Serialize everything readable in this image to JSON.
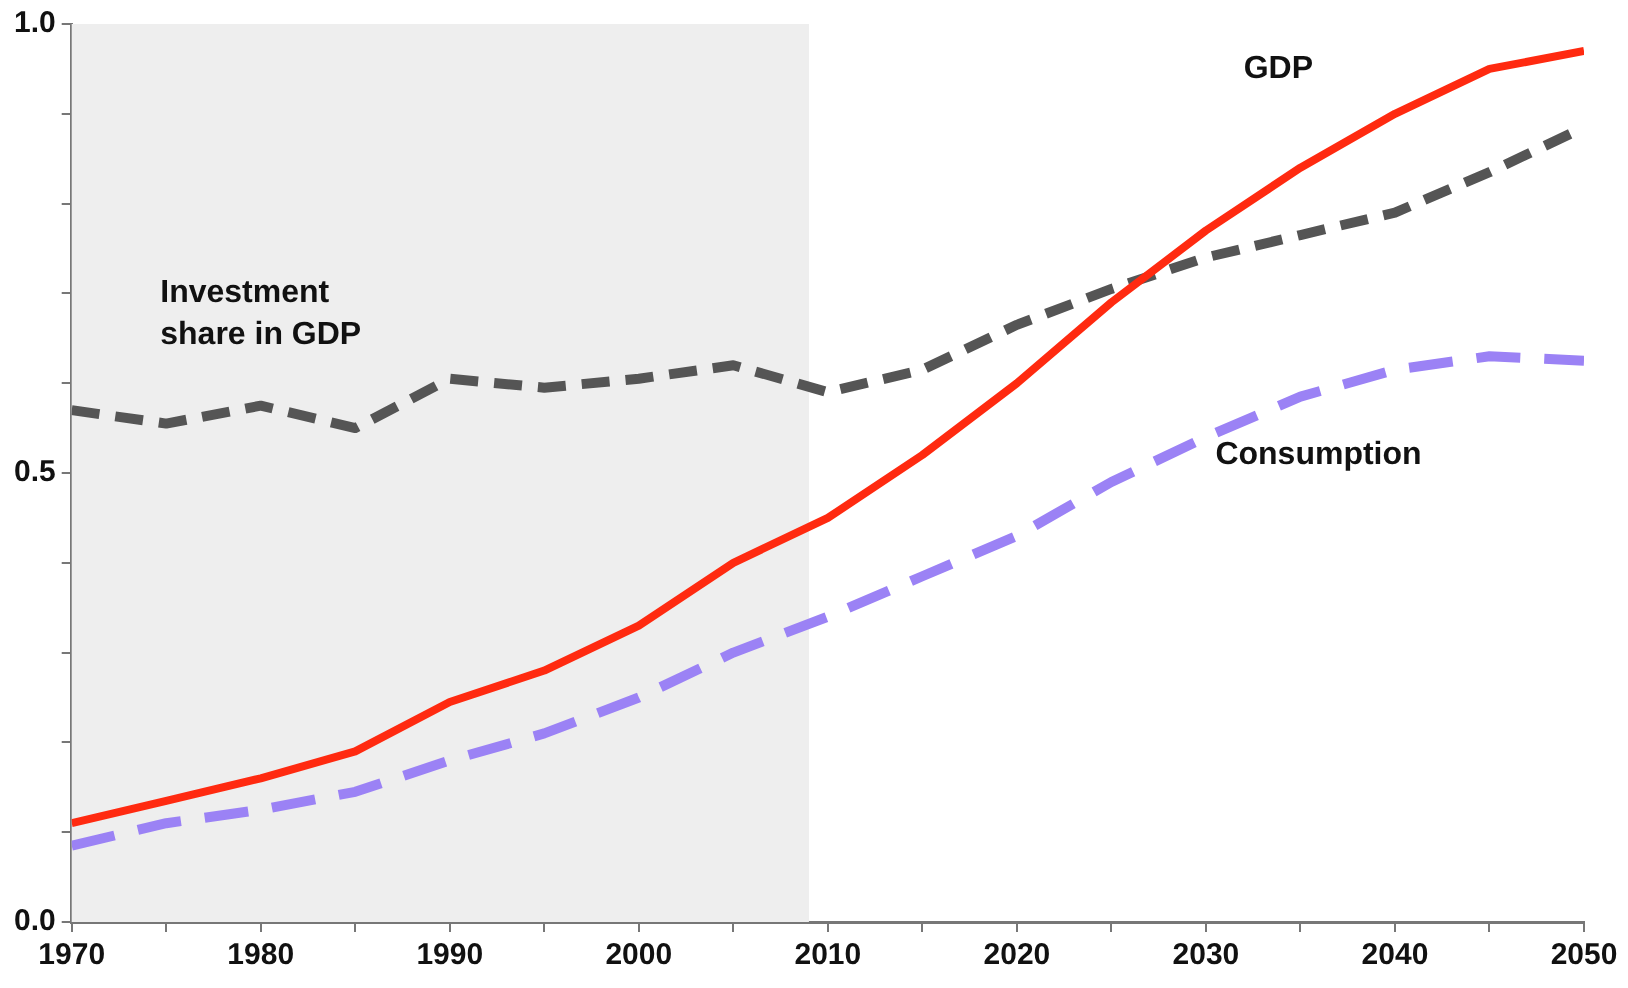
{
  "chart_data": {
    "type": "line",
    "x": [
      1970,
      1975,
      1980,
      1985,
      1990,
      1995,
      2000,
      2005,
      2010,
      2015,
      2020,
      2025,
      2030,
      2035,
      2040,
      2045,
      2050
    ],
    "series": [
      {
        "name": "GDP",
        "color": "#ff2a10",
        "line_style": "solid",
        "values": [
          0.11,
          0.135,
          0.16,
          0.19,
          0.245,
          0.28,
          0.33,
          0.4,
          0.45,
          0.52,
          0.6,
          0.69,
          0.77,
          0.84,
          0.9,
          0.95,
          0.97
        ]
      },
      {
        "name": "Investment share in GDP",
        "color": "#555555",
        "line_style": "dashed",
        "values": [
          0.57,
          0.555,
          0.575,
          0.55,
          0.605,
          0.595,
          0.605,
          0.62,
          0.59,
          0.615,
          0.665,
          0.705,
          0.74,
          0.765,
          0.79,
          0.835,
          0.885
        ]
      },
      {
        "name": "Consumption",
        "color": "#9b82f5",
        "line_style": "dashed",
        "values": [
          0.085,
          0.11,
          0.125,
          0.145,
          0.18,
          0.21,
          0.25,
          0.3,
          0.34,
          0.385,
          0.43,
          0.49,
          0.54,
          0.585,
          0.615,
          0.63,
          0.625
        ]
      }
    ],
    "xlim": [
      1970,
      2050
    ],
    "xticks": [
      1970,
      {
        "value": 1975,
        "label": null
      },
      1980,
      {
        "value": 1985,
        "label": null
      },
      1990,
      {
        "value": 1995,
        "label": null
      },
      2000,
      {
        "value": 2005,
        "label": null
      },
      2010,
      {
        "value": 2015,
        "label": null
      },
      2020,
      {
        "value": 2025,
        "label": null
      },
      2030,
      {
        "value": 2035,
        "label": null
      },
      2040,
      {
        "value": 2045,
        "label": null
      },
      2050
    ],
    "ylim": [
      0,
      1
    ],
    "yticks": [
      {
        "value": 0,
        "label": "0.0"
      },
      {
        "value": 0.1,
        "label": null
      },
      {
        "value": 0.2,
        "label": null
      },
      {
        "value": 0.3,
        "label": null
      },
      {
        "value": 0.4,
        "label": null
      },
      {
        "value": 0.5,
        "label": "0.5"
      },
      {
        "value": 0.6,
        "label": null
      },
      {
        "value": 0.7,
        "label": null
      },
      {
        "value": 0.8,
        "label": null
      },
      {
        "value": 0.9,
        "label": null
      },
      {
        "value": 1,
        "label": "1.0"
      }
    ],
    "bands": [
      {
        "axis": "x",
        "from": 1970,
        "to": 2009,
        "color": "#eeeeee"
      }
    ],
    "grid": false,
    "legend": false,
    "marker": "none"
  }
}
